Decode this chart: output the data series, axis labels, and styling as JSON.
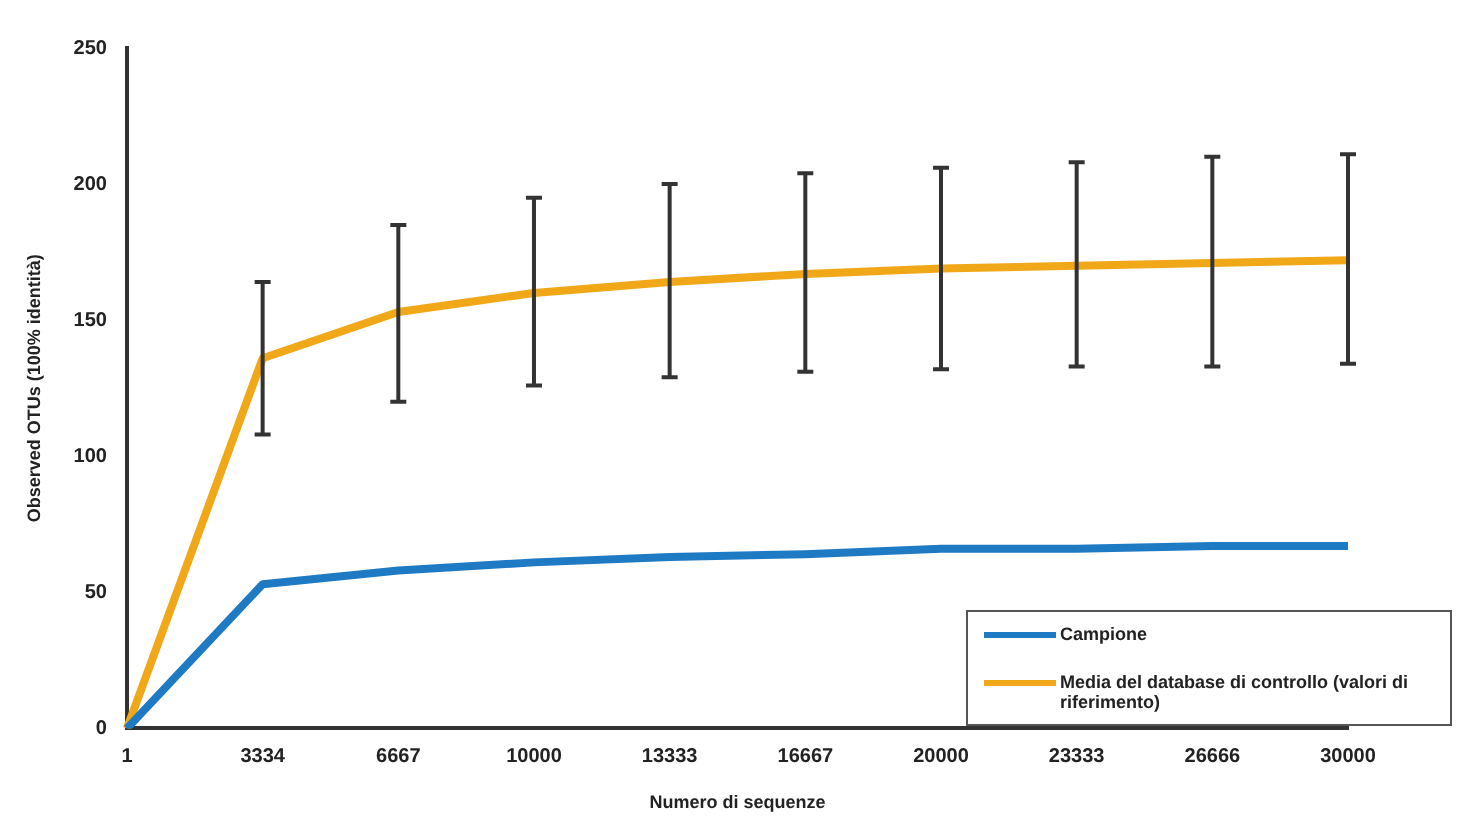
{
  "chart_data": {
    "type": "line",
    "xlabel": "Numero di sequenze",
    "ylabel": "Observed OTUs (100% identità)",
    "categories": [
      "1",
      "3334",
      "6667",
      "10000",
      "13333",
      "16667",
      "20000",
      "23333",
      "26666",
      "30000"
    ],
    "series": [
      {
        "name": "Campione",
        "color": "#1f7ac4",
        "values": [
          0,
          53,
          58,
          61,
          63,
          64,
          66,
          66,
          67,
          67
        ]
      },
      {
        "name": "Media del database di controllo (valori di riferimento)",
        "color": "#f0a818",
        "values": [
          0,
          136,
          153,
          160,
          164,
          167,
          169,
          170,
          171,
          172
        ],
        "errors": [
          null,
          [
            108,
            164
          ],
          [
            120,
            185
          ],
          [
            126,
            195
          ],
          [
            129,
            200
          ],
          [
            131,
            204
          ],
          [
            132,
            206
          ],
          [
            133,
            208
          ],
          [
            133,
            210
          ],
          [
            134,
            211
          ]
        ]
      }
    ],
    "ylim": [
      0,
      250
    ],
    "yticks": [
      0,
      50,
      100,
      150,
      200,
      250
    ],
    "grid": false,
    "legend": "bottom right",
    "marker": "none",
    "line_style": "solid"
  }
}
